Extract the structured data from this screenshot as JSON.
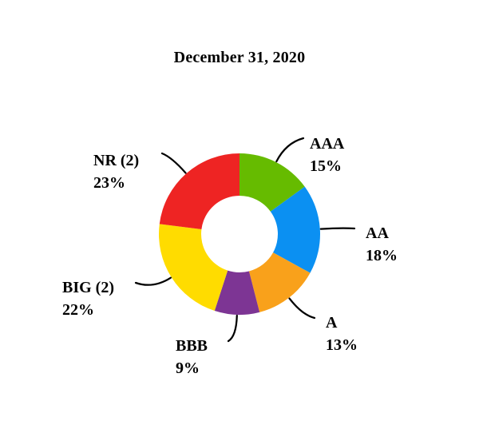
{
  "background_color": "#FFFFFF",
  "text_color": "#000000",
  "leader_line_color": "#000000",
  "chart_data": {
    "type": "pie",
    "subtype": "donut",
    "title": "December 31, 2020",
    "donut_hole_ratio": 0.48,
    "start_angle_deg": 0,
    "direction": "clockwise",
    "legend": "none",
    "total": 100,
    "segments": [
      {
        "label": "AAA",
        "value": 15,
        "pct_label": "15%",
        "color": "#66BB00"
      },
      {
        "label": "AA",
        "value": 18,
        "pct_label": "18%",
        "color": "#0B90F2"
      },
      {
        "label": "A",
        "value": 13,
        "pct_label": "13%",
        "color": "#F9A11B"
      },
      {
        "label": "BBB",
        "value": 9,
        "pct_label": "9%",
        "color": "#7D3594"
      },
      {
        "label": "BIG (2)",
        "value": 22,
        "pct_label": "22%",
        "color": "#FFDC00"
      },
      {
        "label": "NR (2)",
        "value": 23,
        "pct_label": "23%",
        "color": "#EE2423"
      }
    ]
  }
}
